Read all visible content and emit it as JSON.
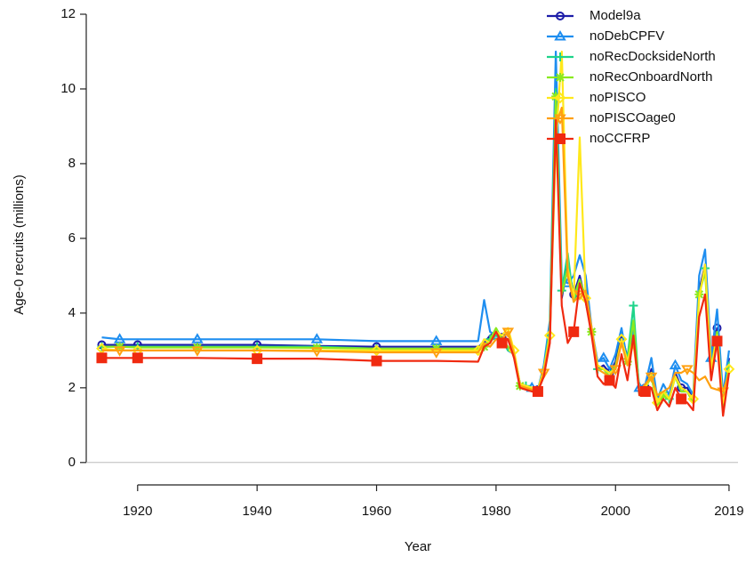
{
  "chart_data": {
    "type": "line",
    "x_label": "Year",
    "y_label": "Age-0 recruits (millions)",
    "x": [
      1914,
      1917,
      1920,
      1930,
      1940,
      1950,
      1960,
      1970,
      1977,
      1978,
      1979,
      1980,
      1981,
      1982,
      1983,
      1984,
      1985,
      1986,
      1987,
      1988,
      1989,
      1990,
      1991,
      1992,
      1993,
      1994,
      1995,
      1996,
      1997,
      1998,
      1999,
      2000,
      2001,
      2002,
      2003,
      2004,
      2005,
      2006,
      2007,
      2008,
      2009,
      2010,
      2011,
      2012,
      2013,
      2014,
      2015,
      2016,
      2017,
      2018,
      2019
    ],
    "series": [
      {
        "name": "Model9a",
        "color": "#1c1ca8",
        "marker": "circle",
        "values": [
          3.15,
          3.15,
          3.15,
          3.15,
          3.15,
          3.12,
          3.1,
          3.1,
          3.1,
          3.2,
          3.4,
          3.5,
          3.35,
          3.3,
          2.9,
          2.1,
          2.05,
          2.0,
          1.95,
          2.4,
          3.5,
          9.5,
          4.4,
          5.3,
          4.5,
          5.0,
          4.3,
          3.5,
          2.5,
          2.6,
          2.4,
          2.7,
          3.45,
          2.8,
          3.5,
          1.9,
          2.0,
          2.5,
          1.6,
          1.9,
          1.7,
          2.4,
          2.0,
          2.0,
          1.7,
          4.6,
          5.3,
          2.5,
          3.6,
          1.6,
          2.8
        ]
      },
      {
        "name": "noDebCPFV",
        "color": "#1e8ef0",
        "marker": "triangle",
        "values": [
          3.35,
          3.3,
          3.3,
          3.3,
          3.3,
          3.3,
          3.25,
          3.25,
          3.25,
          4.35,
          3.5,
          3.4,
          3.3,
          3.0,
          2.9,
          2.1,
          2.05,
          2.0,
          1.95,
          2.6,
          3.8,
          11.0,
          4.9,
          4.8,
          5.0,
          5.55,
          5.0,
          3.6,
          2.7,
          2.8,
          2.5,
          2.9,
          3.6,
          2.7,
          3.6,
          2.0,
          2.1,
          2.8,
          1.7,
          2.1,
          1.8,
          2.6,
          2.2,
          2.1,
          1.8,
          5.0,
          5.7,
          2.8,
          4.1,
          1.8,
          3.0
        ]
      },
      {
        "name": "noRecDocksideNorth",
        "color": "#1ed48a",
        "marker": "plus",
        "values": [
          3.1,
          3.1,
          3.1,
          3.1,
          3.1,
          3.1,
          3.05,
          3.05,
          3.05,
          3.1,
          3.3,
          3.4,
          3.3,
          3.0,
          2.95,
          2.1,
          2.05,
          2.0,
          1.95,
          2.5,
          3.6,
          10.0,
          4.6,
          5.6,
          4.3,
          4.8,
          4.5,
          3.5,
          2.5,
          2.5,
          2.4,
          2.6,
          3.2,
          2.8,
          4.2,
          1.8,
          2.0,
          2.4,
          1.6,
          1.9,
          1.7,
          2.3,
          1.9,
          1.9,
          1.6,
          4.5,
          5.2,
          2.5,
          3.5,
          1.6,
          2.7
        ]
      },
      {
        "name": "noRecOnboardNorth",
        "color": "#8aea1e",
        "marker": "star",
        "values": [
          3.1,
          3.1,
          3.08,
          3.08,
          3.08,
          3.07,
          3.05,
          3.05,
          3.05,
          3.1,
          3.3,
          3.6,
          3.3,
          3.1,
          2.9,
          2.05,
          2.0,
          1.95,
          1.9,
          2.4,
          3.5,
          9.8,
          4.5,
          5.2,
          4.4,
          4.9,
          4.4,
          3.5,
          2.5,
          2.5,
          2.3,
          2.6,
          3.3,
          2.7,
          3.8,
          1.8,
          2.0,
          2.3,
          1.5,
          1.8,
          1.7,
          2.3,
          1.9,
          1.9,
          1.6,
          4.5,
          5.1,
          2.5,
          3.5,
          1.5,
          2.6
        ]
      },
      {
        "name": "noPISCO",
        "color": "#ffe81a",
        "marker": "diamond",
        "values": [
          3.05,
          3.0,
          3.0,
          3.0,
          3.0,
          3.0,
          3.0,
          3.0,
          3.0,
          3.3,
          3.2,
          3.5,
          3.4,
          3.6,
          3.0,
          2.1,
          2.05,
          2.0,
          1.95,
          2.5,
          3.4,
          8.5,
          11.0,
          5.2,
          4.4,
          8.7,
          4.4,
          3.6,
          2.6,
          2.5,
          2.4,
          2.5,
          3.3,
          2.7,
          3.3,
          1.9,
          2.0,
          2.4,
          1.6,
          1.9,
          1.7,
          2.3,
          2.0,
          1.9,
          1.7,
          4.4,
          5.3,
          2.5,
          3.4,
          1.6,
          2.5
        ]
      },
      {
        "name": "noPISCOage0",
        "color": "#ffa010",
        "marker": "down-triangle",
        "values": [
          3.0,
          3.0,
          3.0,
          3.0,
          3.0,
          2.98,
          2.95,
          2.95,
          2.95,
          3.2,
          3.1,
          3.3,
          3.3,
          3.5,
          2.9,
          2.05,
          2.0,
          1.95,
          1.9,
          2.4,
          3.3,
          9.0,
          9.5,
          5.0,
          4.3,
          4.5,
          4.6,
          3.6,
          2.5,
          2.4,
          2.3,
          2.5,
          3.2,
          2.6,
          3.2,
          1.9,
          2.1,
          2.3,
          1.8,
          1.9,
          2.0,
          2.4,
          2.4,
          2.5,
          2.4,
          2.2,
          2.3,
          2.0,
          1.95,
          1.9,
          2.4
        ]
      },
      {
        "name": "noCCFRP",
        "color": "#f02a10",
        "marker": "square",
        "values": [
          2.8,
          2.8,
          2.8,
          2.8,
          2.78,
          2.78,
          2.72,
          2.72,
          2.7,
          3.1,
          3.2,
          3.5,
          3.2,
          3.3,
          2.8,
          2.0,
          1.95,
          1.9,
          1.9,
          2.3,
          3.2,
          9.2,
          4.2,
          3.2,
          3.5,
          4.8,
          4.3,
          3.4,
          2.3,
          2.1,
          2.2,
          2.0,
          2.9,
          2.2,
          3.4,
          1.8,
          1.9,
          2.0,
          1.4,
          1.7,
          1.5,
          2.0,
          1.7,
          1.6,
          1.4,
          3.9,
          4.5,
          2.2,
          3.25,
          1.25,
          2.4
        ]
      }
    ],
    "xlim": [
      1911.4,
      2020.5
    ],
    "xticks": [
      1920,
      1940,
      1960,
      1980,
      2000,
      2019
    ],
    "ylim": [
      -0.6,
      12.3
    ],
    "yticks": [
      0,
      2,
      4,
      6,
      8,
      10,
      12
    ],
    "zero_line": true,
    "legend": "top-right"
  }
}
